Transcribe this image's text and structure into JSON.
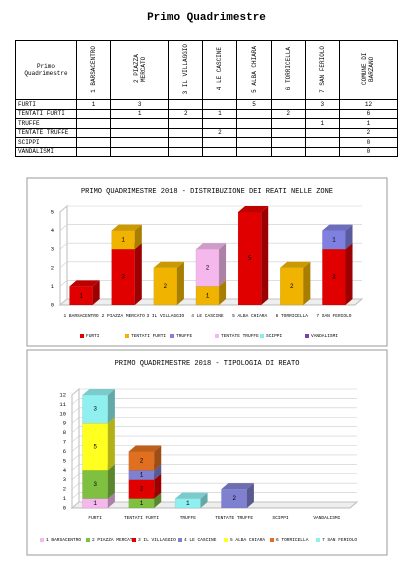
{
  "title": "Primo Quadrimestre",
  "table": {
    "corner": "Primo Quadrimestre",
    "columns": [
      "1 BARSACENTRO",
      "2 PIAZZA MERCATO",
      "3 IL VILLAGGIO",
      "4 LE CASCINE",
      "5 ALBA CHIARA",
      "6 TORRICELLA",
      "7 SAN FERIOLO",
      "COMUNE DI BARZANO"
    ],
    "rows": [
      [
        "FURTI",
        1,
        3,
        null,
        null,
        5,
        null,
        3,
        12
      ],
      [
        "TENTATI FURTI",
        null,
        1,
        2,
        1,
        null,
        2,
        null,
        6
      ],
      [
        "TRUFFE",
        null,
        null,
        null,
        null,
        null,
        null,
        1,
        1
      ],
      [
        "TENTATE TRUFFE",
        null,
        null,
        null,
        2,
        null,
        null,
        null,
        2
      ],
      [
        "SCIPPI",
        null,
        null,
        null,
        null,
        null,
        null,
        null,
        0
      ],
      [
        "VANDALISMI",
        null,
        null,
        null,
        null,
        null,
        null,
        null,
        0
      ]
    ]
  },
  "chart_data": [
    {
      "type": "bar",
      "stacked": true,
      "grid": true,
      "title": "PRIMO QUADRIMESTRE 2018 - DISTRIBUZIONE DEI REATI NELLE ZONE",
      "categories": [
        "1 BARSACENTRO",
        "2 PIAZZA MERCATO",
        "3 IL VILLAGGIO",
        "4 LE CASCINE",
        "5 ALBA CHIARA",
        "6 TORRICELLA",
        "7 SAN FERIOLO"
      ],
      "series": [
        {
          "name": "FURTI",
          "color": "#e00000",
          "values": [
            1,
            3,
            0,
            0,
            5,
            0,
            3
          ]
        },
        {
          "name": "TENTATI FURTI",
          "color": "#f0b400",
          "values": [
            0,
            1,
            2,
            1,
            0,
            2,
            0
          ]
        },
        {
          "name": "TRUFFE",
          "color": "#8080e0",
          "values": [
            0,
            0,
            0,
            0,
            0,
            0,
            1
          ]
        },
        {
          "name": "TENTATE TRUFFE",
          "color": "#f4b8ec",
          "values": [
            0,
            0,
            0,
            2,
            0,
            0,
            0
          ]
        },
        {
          "name": "SCIPPI",
          "color": "#80f0f0",
          "values": [
            0,
            0,
            0,
            0,
            0,
            0,
            0
          ]
        },
        {
          "name": "VANDALISMI",
          "color": "#8040a0",
          "values": [
            0,
            0,
            0,
            0,
            0,
            0,
            0
          ]
        }
      ],
      "ylim": [
        0,
        5
      ],
      "yticks": [
        0,
        1,
        2,
        3,
        4,
        5
      ]
    },
    {
      "type": "bar",
      "stacked": true,
      "grid": true,
      "title": "PRIMO QUADRIMESTRE 2018 - TIPOLOGIA DI REATO",
      "categories": [
        "FURTI",
        "TENTATI FURTI",
        "TRUFFE",
        "TENTATE TRUFFE",
        "SCIPPI",
        "VANDALISMI"
      ],
      "series": [
        {
          "name": "1 BARSACENTRO",
          "color": "#f4b8ec",
          "values": [
            1,
            0,
            0,
            0,
            0,
            0
          ]
        },
        {
          "name": "2 PIAZZA MERCATO",
          "color": "#80c040",
          "values": [
            3,
            1,
            0,
            0,
            0,
            0
          ]
        },
        {
          "name": "3 IL VILLAGGIO",
          "color": "#e00000",
          "values": [
            0,
            2,
            0,
            0,
            0,
            0
          ]
        },
        {
          "name": "4 LE CASCINE",
          "color": "#8080d0",
          "values": [
            0,
            1,
            0,
            2,
            0,
            0
          ]
        },
        {
          "name": "5 ALBA CHIARA",
          "color": "#ffff20",
          "values": [
            5,
            0,
            0,
            0,
            0,
            0
          ]
        },
        {
          "name": "6 TORRICELLA",
          "color": "#e07020",
          "values": [
            0,
            2,
            0,
            0,
            0,
            0
          ]
        },
        {
          "name": "7 SAN FERIOLO",
          "color": "#90f0f0",
          "values": [
            3,
            0,
            1,
            0,
            0,
            0
          ]
        }
      ],
      "ylim": [
        0,
        12
      ],
      "yticks": [
        0,
        1,
        2,
        3,
        4,
        5,
        6,
        7,
        8,
        9,
        10,
        11,
        12
      ]
    }
  ]
}
